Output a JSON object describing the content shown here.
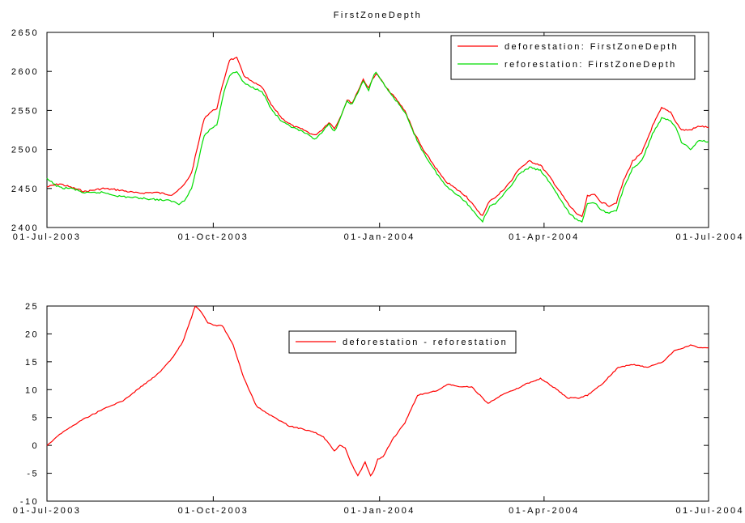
{
  "chart_data": [
    {
      "type": "line",
      "title": "FirstZoneDepth",
      "xlabel": "",
      "ylabel": "",
      "xlim": [
        "2003-07-01",
        "2004-07-01"
      ],
      "ylim": [
        2400,
        2650
      ],
      "x_ticks": [
        "01-Jul-2003",
        "01-Oct-2003",
        "01-Jan-2004",
        "01-Apr-2004",
        "01-Jul-2004"
      ],
      "y_ticks": [
        "2400",
        "2450",
        "2500",
        "2550",
        "2600",
        "2650"
      ],
      "legend_position": "top-right",
      "grid": false,
      "series": [
        {
          "name": "deforestation: FirstZoneDepth",
          "color": "#ff0000",
          "x": [
            "2003-07-01",
            "2003-07-08",
            "2003-07-15",
            "2003-07-22",
            "2003-08-01",
            "2003-08-10",
            "2003-08-20",
            "2003-08-30",
            "2003-09-08",
            "2003-09-12",
            "2003-09-15",
            "2003-09-19",
            "2003-09-22",
            "2003-09-26",
            "2003-09-29",
            "2003-10-03",
            "2003-10-07",
            "2003-10-10",
            "2003-10-14",
            "2003-10-18",
            "2003-10-22",
            "2003-10-28",
            "2003-11-02",
            "2003-11-08",
            "2003-11-14",
            "2003-11-20",
            "2003-11-26",
            "2003-11-30",
            "2003-12-04",
            "2003-12-07",
            "2003-12-10",
            "2003-12-14",
            "2003-12-17",
            "2003-12-20",
            "2003-12-23",
            "2003-12-26",
            "2003-12-28",
            "2003-12-30",
            "2004-01-01",
            "2004-01-05",
            "2004-01-10",
            "2004-01-15",
            "2004-01-20",
            "2004-01-25",
            "2004-01-31",
            "2004-02-06",
            "2004-02-12",
            "2004-02-18",
            "2004-02-23",
            "2004-02-27",
            "2004-03-02",
            "2004-03-06",
            "2004-03-10",
            "2004-03-14",
            "2004-03-18",
            "2004-03-24",
            "2004-03-30",
            "2004-04-05",
            "2004-04-10",
            "2004-04-15",
            "2004-04-19",
            "2004-04-22",
            "2004-04-25",
            "2004-04-29",
            "2004-05-03",
            "2004-05-07",
            "2004-05-11",
            "2004-05-15",
            "2004-05-20",
            "2004-05-25",
            "2004-05-31",
            "2004-06-05",
            "2004-06-10",
            "2004-06-13",
            "2004-06-16",
            "2004-06-21",
            "2004-06-26",
            "2004-07-01"
          ],
          "values": [
            2452,
            2456,
            2451,
            2446,
            2450,
            2448,
            2444,
            2445,
            2442,
            2448,
            2455,
            2470,
            2500,
            2540,
            2547,
            2553,
            2590,
            2615,
            2617,
            2595,
            2587,
            2580,
            2557,
            2540,
            2530,
            2525,
            2518,
            2525,
            2535,
            2527,
            2540,
            2563,
            2560,
            2575,
            2590,
            2578,
            2590,
            2597,
            2592,
            2578,
            2565,
            2550,
            2522,
            2500,
            2480,
            2460,
            2450,
            2440,
            2425,
            2415,
            2435,
            2440,
            2450,
            2460,
            2475,
            2485,
            2480,
            2462,
            2445,
            2428,
            2418,
            2413,
            2440,
            2442,
            2432,
            2428,
            2432,
            2460,
            2485,
            2495,
            2530,
            2553,
            2548,
            2535,
            2525,
            2525,
            2530,
            2528
          ]
        },
        {
          "name": "reforestation: FirstZoneDepth",
          "color": "#00dd00",
          "x": [
            "2003-07-01",
            "2003-07-08",
            "2003-07-15",
            "2003-07-22",
            "2003-08-01",
            "2003-08-10",
            "2003-08-20",
            "2003-08-30",
            "2003-09-08",
            "2003-09-12",
            "2003-09-15",
            "2003-09-19",
            "2003-09-22",
            "2003-09-26",
            "2003-09-29",
            "2003-10-03",
            "2003-10-07",
            "2003-10-10",
            "2003-10-14",
            "2003-10-18",
            "2003-10-22",
            "2003-10-28",
            "2003-11-02",
            "2003-11-08",
            "2003-11-14",
            "2003-11-20",
            "2003-11-26",
            "2003-11-30",
            "2003-12-04",
            "2003-12-07",
            "2003-12-10",
            "2003-12-14",
            "2003-12-17",
            "2003-12-20",
            "2003-12-23",
            "2003-12-26",
            "2003-12-28",
            "2003-12-30",
            "2004-01-01",
            "2004-01-05",
            "2004-01-10",
            "2004-01-15",
            "2004-01-20",
            "2004-01-25",
            "2004-01-31",
            "2004-02-06",
            "2004-02-12",
            "2004-02-18",
            "2004-02-23",
            "2004-02-27",
            "2004-03-02",
            "2004-03-06",
            "2004-03-10",
            "2004-03-14",
            "2004-03-18",
            "2004-03-24",
            "2004-03-30",
            "2004-04-05",
            "2004-04-10",
            "2004-04-15",
            "2004-04-19",
            "2004-04-22",
            "2004-04-25",
            "2004-04-29",
            "2004-05-03",
            "2004-05-07",
            "2004-05-11",
            "2004-05-15",
            "2004-05-20",
            "2004-05-25",
            "2004-05-31",
            "2004-06-05",
            "2004-06-10",
            "2004-06-13",
            "2004-06-16",
            "2004-06-21",
            "2004-06-26",
            "2004-07-01"
          ],
          "values": [
            2462,
            2451,
            2450,
            2444,
            2445,
            2440,
            2438,
            2436,
            2434,
            2430,
            2435,
            2450,
            2478,
            2518,
            2525,
            2532,
            2575,
            2595,
            2600,
            2585,
            2580,
            2575,
            2552,
            2535,
            2528,
            2522,
            2513,
            2522,
            2532,
            2523,
            2538,
            2562,
            2558,
            2573,
            2588,
            2575,
            2590,
            2600,
            2592,
            2578,
            2563,
            2548,
            2520,
            2497,
            2475,
            2455,
            2444,
            2432,
            2418,
            2408,
            2428,
            2432,
            2443,
            2455,
            2468,
            2477,
            2473,
            2455,
            2436,
            2418,
            2410,
            2408,
            2430,
            2432,
            2422,
            2418,
            2422,
            2450,
            2476,
            2485,
            2520,
            2540,
            2537,
            2528,
            2510,
            2500,
            2512,
            2510
          ]
        }
      ]
    },
    {
      "type": "line",
      "title": "",
      "xlabel": "",
      "ylabel": "",
      "xlim": [
        "2003-07-01",
        "2004-07-01"
      ],
      "ylim": [
        -10,
        25
      ],
      "x_ticks": [
        "01-Jul-2003",
        "01-Oct-2003",
        "01-Jan-2004",
        "01-Apr-2004",
        "01-Jul-2004"
      ],
      "y_ticks": [
        "-10",
        "-5",
        "0",
        "5",
        "10",
        "15",
        "20",
        "25"
      ],
      "legend_position": "top-center",
      "grid": false,
      "series": [
        {
          "name": "deforestation - reforestation",
          "color": "#ff0000",
          "x": [
            "2003-07-01",
            "2003-07-08",
            "2003-07-20",
            "2003-08-01",
            "2003-08-12",
            "2003-08-22",
            "2003-09-01",
            "2003-09-08",
            "2003-09-14",
            "2003-09-19",
            "2003-09-21",
            "2003-09-24",
            "2003-09-28",
            "2003-10-02",
            "2003-10-06",
            "2003-10-12",
            "2003-10-18",
            "2003-10-25",
            "2003-11-01",
            "2003-11-12",
            "2003-11-25",
            "2003-12-01",
            "2003-12-07",
            "2003-12-10",
            "2003-12-13",
            "2003-12-16",
            "2003-12-20",
            "2003-12-24",
            "2003-12-27",
            "2003-12-29",
            "2003-12-31",
            "2004-01-03",
            "2004-01-08",
            "2004-01-15",
            "2004-01-22",
            "2004-01-29",
            "2004-02-03",
            "2004-02-08",
            "2004-02-14",
            "2004-02-21",
            "2004-03-01",
            "2004-03-08",
            "2004-03-16",
            "2004-03-22",
            "2004-03-30",
            "2004-04-06",
            "2004-04-14",
            "2004-04-20",
            "2004-04-25",
            "2004-05-03",
            "2004-05-12",
            "2004-05-20",
            "2004-05-28",
            "2004-06-06",
            "2004-06-12",
            "2004-06-17",
            "2004-06-21",
            "2004-06-26",
            "2004-07-01"
          ],
          "values": [
            0,
            2,
            4.5,
            6.5,
            8,
            10.5,
            13,
            15.5,
            18.5,
            23,
            25,
            24,
            22,
            21.5,
            21.5,
            18,
            12,
            7,
            5.5,
            3.5,
            2.5,
            1.5,
            -1,
            0,
            -0.5,
            -3,
            -5.5,
            -3,
            -5.5,
            -4.5,
            -2.5,
            -2,
            1,
            4,
            9,
            9.5,
            10,
            11,
            10.5,
            10.5,
            7.5,
            9,
            10,
            11,
            12,
            10.5,
            8.5,
            8.5,
            9,
            11,
            14,
            14.5,
            14,
            15,
            17,
            17.5,
            18,
            17.5,
            17.5
          ]
        }
      ]
    }
  ]
}
